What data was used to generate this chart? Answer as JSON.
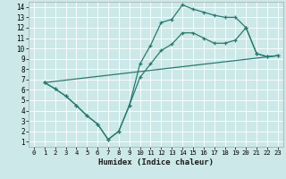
{
  "xlabel": "Humidex (Indice chaleur)",
  "background_color": "#cce8e8",
  "grid_color": "#ffffff",
  "line_color": "#2a7a6f",
  "xlim": [
    -0.5,
    23.5
  ],
  "ylim": [
    0.5,
    14.5
  ],
  "xticks": [
    0,
    1,
    2,
    3,
    4,
    5,
    6,
    7,
    8,
    9,
    10,
    11,
    12,
    13,
    14,
    15,
    16,
    17,
    18,
    19,
    20,
    21,
    22,
    23
  ],
  "yticks": [
    1,
    2,
    3,
    4,
    5,
    6,
    7,
    8,
    9,
    10,
    11,
    12,
    13,
    14
  ],
  "line1_x": [
    1,
    2,
    3,
    4,
    5,
    6,
    7,
    8,
    9,
    10,
    11,
    12,
    13,
    14,
    15,
    16,
    17,
    18,
    19,
    20,
    21,
    22,
    23
  ],
  "line1_y": [
    6.7,
    6.1,
    5.4,
    4.5,
    3.5,
    2.7,
    1.2,
    2.0,
    4.5,
    8.5,
    10.3,
    12.5,
    12.8,
    14.2,
    13.8,
    13.5,
    13.2,
    13.0,
    13.0,
    12.0,
    9.5,
    9.2,
    9.3
  ],
  "line2_x": [
    1,
    2,
    3,
    4,
    5,
    6,
    7,
    8,
    9,
    10,
    11,
    12,
    13,
    14,
    15,
    16,
    17,
    18,
    19,
    20,
    21,
    22,
    23
  ],
  "line2_y": [
    6.7,
    6.1,
    5.4,
    4.5,
    3.5,
    2.7,
    1.2,
    2.0,
    4.5,
    7.2,
    8.5,
    9.8,
    10.4,
    11.5,
    11.5,
    11.0,
    10.5,
    10.5,
    10.8,
    12.0,
    9.5,
    9.2,
    9.3
  ],
  "line3_x": [
    1,
    23
  ],
  "line3_y": [
    6.7,
    9.3
  ]
}
